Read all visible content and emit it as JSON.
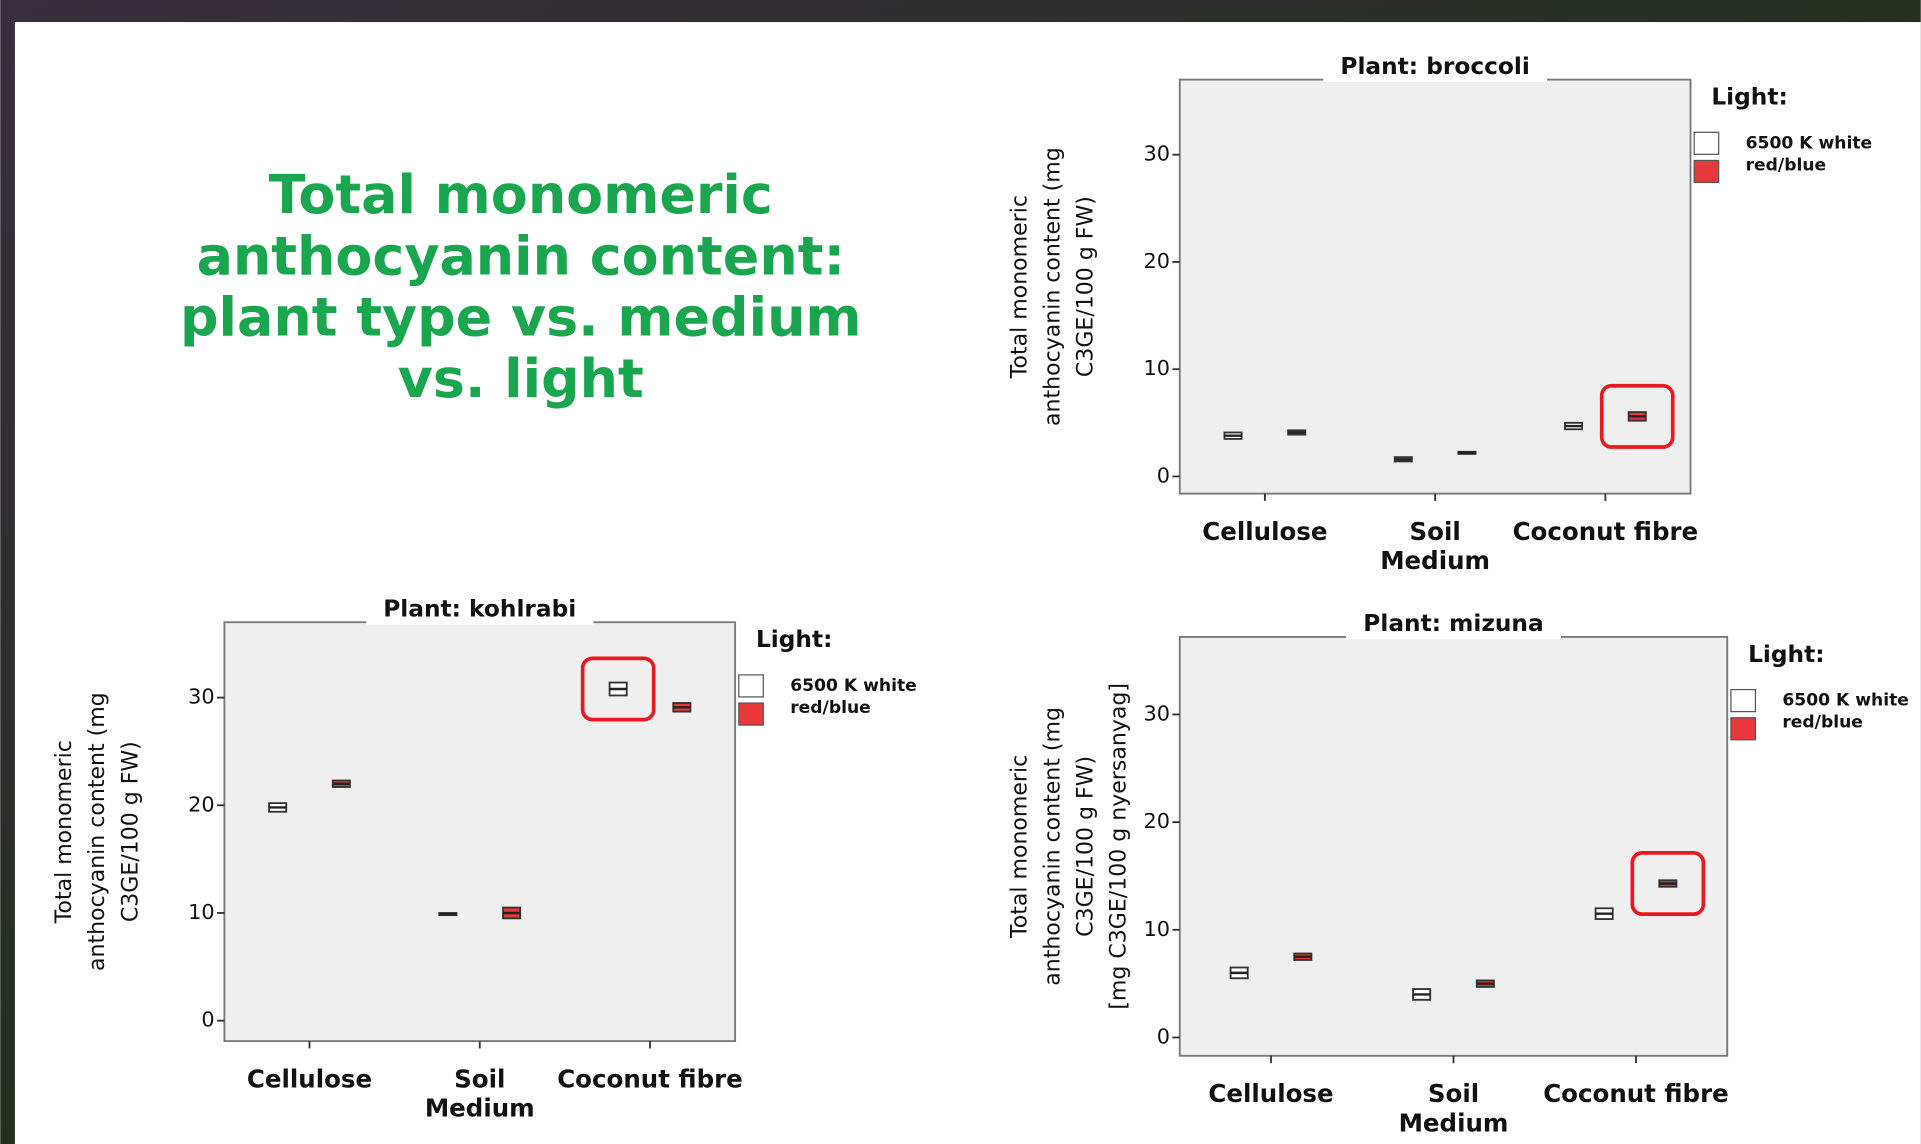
{
  "slide_title": [
    "Total monomeric",
    "anthocyanin content:",
    "plant type vs. medium",
    "vs. light"
  ],
  "chart_data": [
    {
      "type": "box",
      "title": "Plant: broccoli",
      "xlabel": "Medium",
      "ylabel": [
        "Total monomeric",
        "anthocyanin content (mg",
        "C3GE/100 g FW)"
      ],
      "categories": [
        "Cellulose",
        "Soil",
        "Coconut fibre"
      ],
      "legend_title": "Light:",
      "series": [
        {
          "name": "6500 K white",
          "color": "#ffffff",
          "values": [
            3.8,
            1.6,
            4.7
          ],
          "q1": [
            3.5,
            1.4,
            4.4
          ],
          "q3": [
            4.1,
            1.8,
            5.0
          ]
        },
        {
          "name": "red/blue",
          "color": "#e8383a",
          "values": [
            4.1,
            2.2,
            5.6
          ],
          "q1": [
            3.9,
            2.1,
            5.2
          ],
          "q3": [
            4.3,
            2.3,
            6.0
          ]
        }
      ],
      "ylim": [
        -1.6,
        37
      ],
      "yticks": [
        0,
        10,
        20,
        30
      ],
      "highlight": {
        "series": 1,
        "category": 2
      }
    },
    {
      "type": "box",
      "title": "Plant: kohlrabi",
      "xlabel": "Medium",
      "ylabel": [
        "Total monomeric",
        "anthocyanin content (mg",
        "C3GE/100 g FW)"
      ],
      "categories": [
        "Cellulose",
        "Soil",
        "Coconut fibre"
      ],
      "legend_title": "Light:",
      "series": [
        {
          "name": "6500 K white",
          "color": "#ffffff",
          "values": [
            19.8,
            9.9,
            30.8
          ],
          "q1": [
            19.4,
            9.8,
            30.2
          ],
          "q3": [
            20.2,
            10.0,
            31.4
          ]
        },
        {
          "name": "red/blue",
          "color": "#e8383a",
          "values": [
            22.0,
            10.0,
            29.1
          ],
          "q1": [
            21.7,
            9.5,
            28.7
          ],
          "q3": [
            22.3,
            10.5,
            29.5
          ]
        }
      ],
      "ylim": [
        -1.9,
        37
      ],
      "yticks": [
        0,
        10,
        20,
        30
      ],
      "highlight": {
        "series": 0,
        "category": 2
      }
    },
    {
      "type": "box",
      "title": "Plant: mizuna",
      "xlabel": "Medium",
      "ylabel": [
        "Total monomeric",
        "anthocyanin content (mg",
        "C3GE/100 g FW)",
        "[mg C3GE/100 g nyersanyag]"
      ],
      "categories": [
        "Cellulose",
        "Soil",
        "Coconut fibre"
      ],
      "legend_title": "Light:",
      "series": [
        {
          "name": "6500 K white",
          "color": "#ffffff",
          "values": [
            6.0,
            4.0,
            11.5
          ],
          "q1": [
            5.5,
            3.5,
            11.0
          ],
          "q3": [
            6.5,
            4.5,
            12.0
          ]
        },
        {
          "name": "red/blue",
          "color": "#e8383a",
          "values": [
            7.5,
            5.0,
            14.3
          ],
          "q1": [
            7.2,
            4.7,
            14.0
          ],
          "q3": [
            7.8,
            5.3,
            14.6
          ]
        }
      ],
      "ylim": [
        -1.7,
        37.2
      ],
      "yticks": [
        0,
        10,
        20,
        30
      ],
      "highlight": {
        "series": 1,
        "category": 2
      }
    }
  ]
}
